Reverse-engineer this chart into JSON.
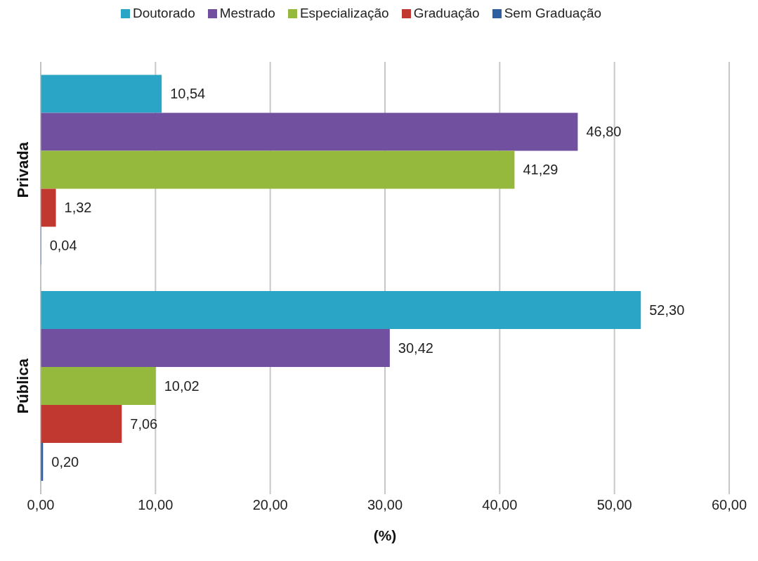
{
  "chart_data": {
    "type": "bar",
    "orientation": "horizontal",
    "categories": [
      "Privada",
      "Pública"
    ],
    "series": [
      {
        "name": "Doutorado",
        "color": "#2ba5c6",
        "values": [
          10.54,
          52.3
        ],
        "value_labels": [
          "10,54",
          "52,30"
        ]
      },
      {
        "name": "Mestrado",
        "color": "#7150a0",
        "values": [
          46.8,
          30.42
        ],
        "value_labels": [
          "46,80",
          "30,42"
        ]
      },
      {
        "name": "Especialização",
        "color": "#94b93d",
        "values": [
          41.29,
          10.02
        ],
        "value_labels": [
          "41,29",
          "10,02"
        ]
      },
      {
        "name": "Graduação",
        "color": "#c0382f",
        "values": [
          1.32,
          7.06
        ],
        "value_labels": [
          "1,32",
          "7,06"
        ]
      },
      {
        "name": "Sem Graduação",
        "color": "#2f5f9e",
        "values": [
          0.04,
          0.2
        ],
        "value_labels": [
          "0,04",
          "0,20"
        ]
      }
    ],
    "xlabel": "(%)",
    "xlim": [
      0,
      60
    ],
    "xticks": [
      {
        "value": 0,
        "label": "0,00"
      },
      {
        "value": 10,
        "label": "10,00"
      },
      {
        "value": 20,
        "label": "20,00"
      },
      {
        "value": 30,
        "label": "30,00"
      },
      {
        "value": 40,
        "label": "40,00"
      },
      {
        "value": 50,
        "label": "50,00"
      },
      {
        "value": 60,
        "label": "60,00"
      }
    ],
    "grid": "x",
    "legend": "top"
  }
}
